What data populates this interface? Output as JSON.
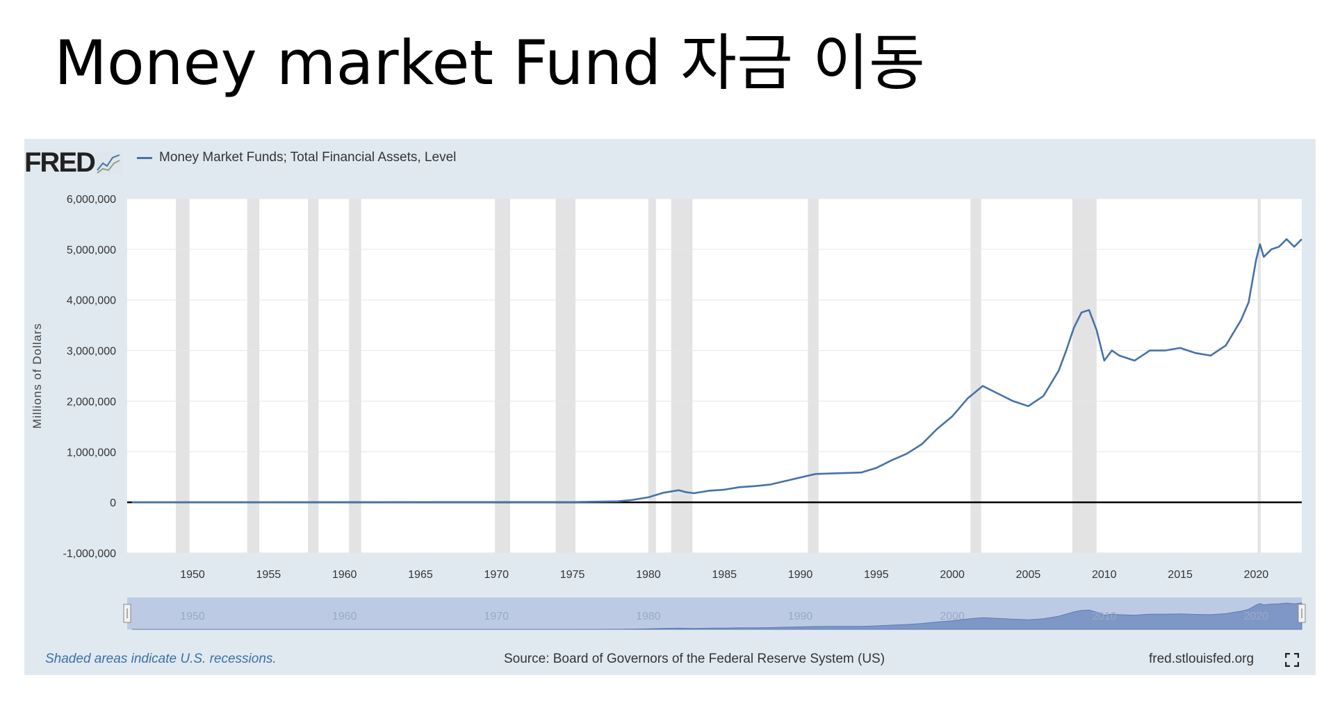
{
  "slide": {
    "title": "Money market Fund 자금 이동"
  },
  "header": {
    "logo": "FRED"
  },
  "chart_data": {
    "type": "line",
    "series": [
      {
        "name": "Money Market Funds; Total Financial Assets, Level",
        "color": "#4572a7",
        "x": [
          1946,
          1951,
          1970,
          1975,
          1978,
          1979,
          1980,
          1981,
          1982,
          1982.5,
          1983,
          1984,
          1985,
          1986,
          1987,
          1988,
          1989,
          1990,
          1991,
          1992,
          1993,
          1994,
          1995,
          1996,
          1997,
          1998,
          1999,
          2000,
          2001,
          2002,
          2003,
          2004,
          2005,
          2006,
          2007,
          2007.5,
          2008,
          2008.5,
          2009,
          2009.5,
          2010,
          2010.5,
          2011,
          2012,
          2013,
          2014,
          2015,
          2016,
          2017,
          2018,
          2019,
          2019.5,
          2020,
          2020.25,
          2020.5,
          2021,
          2021.5,
          2022,
          2022.5,
          2023
        ],
        "values": [
          0,
          0,
          5000,
          5000,
          20000,
          50000,
          100000,
          190000,
          240000,
          200000,
          180000,
          230000,
          250000,
          300000,
          320000,
          350000,
          420000,
          490000,
          560000,
          570000,
          580000,
          590000,
          680000,
          830000,
          960000,
          1150000,
          1450000,
          1700000,
          2050000,
          2300000,
          2150000,
          2000000,
          1900000,
          2100000,
          2600000,
          3000000,
          3450000,
          3750000,
          3800000,
          3400000,
          2800000,
          3000000,
          2900000,
          2800000,
          3000000,
          3000000,
          3050000,
          2950000,
          2900000,
          3100000,
          3600000,
          3950000,
          4800000,
          5100000,
          4850000,
          5000000,
          5050000,
          5200000,
          5050000,
          5200000
        ]
      }
    ],
    "ylabel": "Millions of Dollars",
    "ylim": [
      -1000000,
      6000000
    ],
    "y_ticks": [
      "-1,000,000",
      "0",
      "1,000,000",
      "2,000,000",
      "3,000,000",
      "4,000,000",
      "5,000,000",
      "6,000,000"
    ],
    "y_tick_values": [
      -1000000,
      0,
      1000000,
      2000000,
      3000000,
      4000000,
      5000000,
      6000000
    ],
    "xlim": [
      1945.7,
      2023.0
    ],
    "x_ticks": [
      1950,
      1955,
      1960,
      1965,
      1970,
      1975,
      1980,
      1985,
      1990,
      1995,
      2000,
      2005,
      2010,
      2015,
      2020
    ],
    "recessions": [
      [
        1948.9,
        1949.8
      ],
      [
        1953.6,
        1954.4
      ],
      [
        1957.6,
        1958.3
      ],
      [
        1960.3,
        1961.1
      ],
      [
        1969.9,
        1970.9
      ],
      [
        1973.9,
        1975.2
      ],
      [
        1980.0,
        1980.5
      ],
      [
        1981.5,
        1982.9
      ],
      [
        1990.5,
        1991.2
      ],
      [
        2001.2,
        2001.9
      ],
      [
        2007.9,
        2009.5
      ],
      [
        2020.1,
        2020.3
      ]
    ],
    "navigator_ticks": [
      1950,
      1960,
      1970,
      1980,
      1990,
      2000,
      2010,
      2020
    ],
    "grid": true,
    "legend": "top-left"
  },
  "footer": {
    "note": "Shaded areas indicate U.S. recessions.",
    "source": "Source: Board of Governors of the Federal Reserve System (US)",
    "link": "fred.stlouisfed.org"
  },
  "icons": {
    "fullscreen": "fullscreen-icon",
    "logo_chart": "fred-line-chart-icon"
  }
}
